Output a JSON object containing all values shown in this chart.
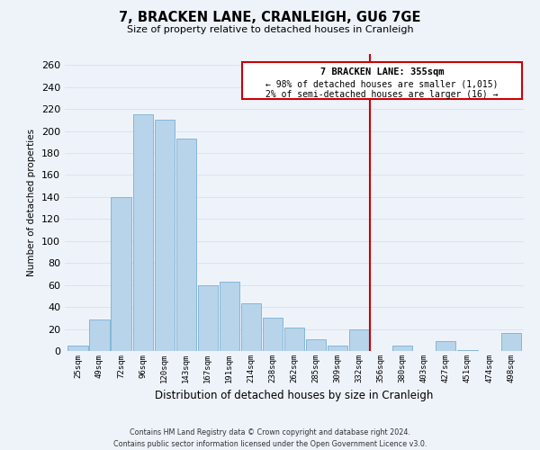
{
  "title": "7, BRACKEN LANE, CRANLEIGH, GU6 7GE",
  "subtitle": "Size of property relative to detached houses in Cranleigh",
  "xlabel": "Distribution of detached houses by size in Cranleigh",
  "ylabel": "Number of detached properties",
  "bar_labels": [
    "25sqm",
    "49sqm",
    "72sqm",
    "96sqm",
    "120sqm",
    "143sqm",
    "167sqm",
    "191sqm",
    "214sqm",
    "238sqm",
    "262sqm",
    "285sqm",
    "309sqm",
    "332sqm",
    "356sqm",
    "380sqm",
    "403sqm",
    "427sqm",
    "451sqm",
    "474sqm",
    "498sqm"
  ],
  "bar_values": [
    5,
    29,
    140,
    215,
    210,
    193,
    60,
    63,
    43,
    30,
    21,
    11,
    5,
    20,
    0,
    5,
    0,
    9,
    1,
    0,
    16
  ],
  "bar_color": "#b8d4ea",
  "bar_edge_color": "#7aafd4",
  "vline_color": "#cc0000",
  "annotation_line1": "7 BRACKEN LANE: 355sqm",
  "annotation_line2": "← 98% of detached houses are smaller (1,015)",
  "annotation_line3": "2% of semi-detached houses are larger (16) →",
  "annotation_box_color": "#ffffff",
  "annotation_box_edge": "#cc0000",
  "ylim": [
    0,
    270
  ],
  "yticks": [
    0,
    20,
    40,
    60,
    80,
    100,
    120,
    140,
    160,
    180,
    200,
    220,
    240,
    260
  ],
  "footer_line1": "Contains HM Land Registry data © Crown copyright and database right 2024.",
  "footer_line2": "Contains public sector information licensed under the Open Government Licence v3.0.",
  "bg_color": "#eef3fa",
  "grid_color": "#d8e4f0"
}
